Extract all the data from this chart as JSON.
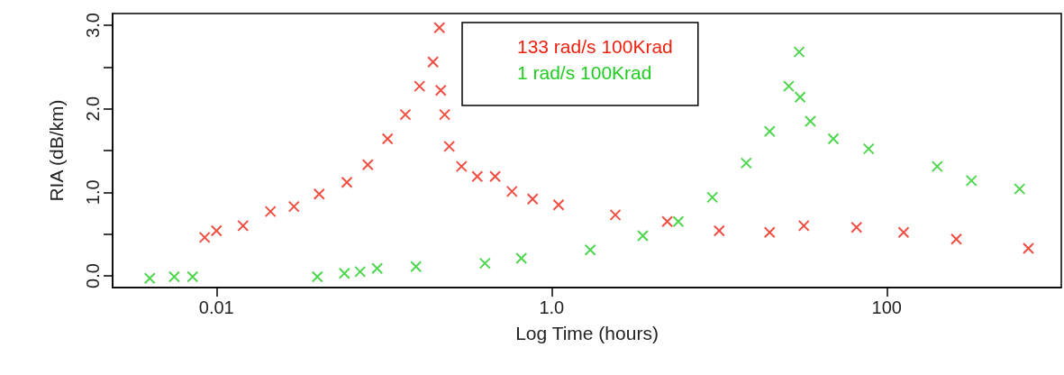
{
  "chart_data": {
    "type": "scatter",
    "xlabel": "Log Time (hours)",
    "ylabel": "RIA (dB/km)",
    "log": "x",
    "marker": "cross",
    "legend": "top",
    "grid": false,
    "xlim": [
      0.0024,
      1100
    ],
    "xticks": [
      {
        "value": 0.01,
        "label": "0.01"
      },
      {
        "value": 1,
        "label": "1.0"
      },
      100
    ],
    "ylim": [
      -0.14,
      3.14
    ],
    "yticks": [
      {
        "value": 0,
        "label": "0.0"
      },
      {
        "value": 0.5,
        "label": null
      },
      {
        "value": 1,
        "label": "1.0"
      },
      {
        "value": 1.5,
        "label": null
      },
      {
        "value": 2,
        "label": "2.0"
      },
      {
        "value": 2.5,
        "label": null
      },
      {
        "value": 3,
        "label": "3.0"
      }
    ],
    "series": [
      {
        "name": "133 rad/s 100Krad",
        "color": "#ee2211",
        "x": [
          0.0085,
          0.01,
          0.0144,
          0.021,
          0.029,
          0.041,
          0.06,
          0.08,
          0.105,
          0.134,
          0.163,
          0.196,
          0.214,
          0.218,
          0.23,
          0.245,
          0.29,
          0.36,
          0.46,
          0.58,
          0.77,
          1.1,
          2.4,
          4.9,
          10,
          20,
          32,
          66,
          126,
          260,
          700
        ],
        "values": [
          0.46,
          0.54,
          0.6,
          0.77,
          0.83,
          0.98,
          1.12,
          1.33,
          1.64,
          1.93,
          2.27,
          2.56,
          2.97,
          2.22,
          1.93,
          1.55,
          1.31,
          1.19,
          1.19,
          1.01,
          0.92,
          0.85,
          0.73,
          0.65,
          0.54,
          0.52,
          0.6,
          0.58,
          0.52,
          0.44,
          0.33
        ]
      },
      {
        "name": "1 rad/s 100Krad",
        "color": "#22cc22",
        "x": [
          0.004,
          0.0056,
          0.0072,
          0.04,
          0.058,
          0.072,
          0.091,
          0.155,
          0.4,
          0.66,
          1.7,
          3.5,
          5.7,
          9.1,
          14.5,
          20,
          26,
          30,
          30.4,
          35,
          48,
          78,
          200,
          320,
          620
        ],
        "values": [
          -0.03,
          -0.01,
          -0.01,
          -0.01,
          0.03,
          0.05,
          0.09,
          0.11,
          0.15,
          0.21,
          0.31,
          0.48,
          0.65,
          0.94,
          1.35,
          1.73,
          2.27,
          2.68,
          2.14,
          1.85,
          1.64,
          1.52,
          1.31,
          1.14,
          1.04
        ]
      }
    ]
  }
}
